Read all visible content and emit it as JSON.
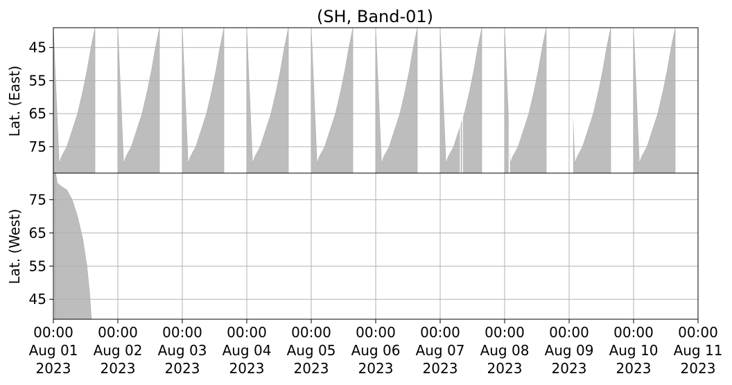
{
  "chart_data": {
    "type": "area",
    "title": "(SH, Band-01)",
    "fill_color": "#bdbdbd",
    "grid": true,
    "x_range": [
      "2023-08-01 00:00",
      "2023-08-11 00:00"
    ],
    "x_ticks": [
      {
        "date": "2023-08-01",
        "time": "00:00",
        "day": "Aug 01",
        "year": "2023"
      },
      {
        "date": "2023-08-02",
        "time": "00:00",
        "day": "Aug 02",
        "year": "2023"
      },
      {
        "date": "2023-08-03",
        "time": "00:00",
        "day": "Aug 03",
        "year": "2023"
      },
      {
        "date": "2023-08-04",
        "time": "00:00",
        "day": "Aug 04",
        "year": "2023"
      },
      {
        "date": "2023-08-05",
        "time": "00:00",
        "day": "Aug 05",
        "year": "2023"
      },
      {
        "date": "2023-08-06",
        "time": "00:00",
        "day": "Aug 06",
        "year": "2023"
      },
      {
        "date": "2023-08-07",
        "time": "00:00",
        "day": "Aug 07",
        "year": "2023"
      },
      {
        "date": "2023-08-08",
        "time": "00:00",
        "day": "Aug 08",
        "year": "2023"
      },
      {
        "date": "2023-08-09",
        "time": "00:00",
        "day": "Aug 09",
        "year": "2023"
      },
      {
        "date": "2023-08-10",
        "time": "00:00",
        "day": "Aug 10",
        "year": "2023"
      },
      {
        "date": "2023-08-11",
        "time": "00:00",
        "day": "Aug 11",
        "year": "2023"
      }
    ],
    "panels": [
      {
        "ylabel": "Lat. (East)",
        "ylim": [
          39,
          83
        ],
        "inverted": true,
        "yticks": [
          45,
          55,
          65,
          75
        ],
        "coverage": [
          {
            "start": "2023-08-01 00:00",
            "cutoff": [
              [
                "2023-08-01 02:10",
                80
              ],
              [
                "2023-08-01 03:00",
                78
              ],
              [
                "2023-08-01 05:00",
                75
              ],
              [
                "2023-08-01 07:00",
                70
              ],
              [
                "2023-08-01 09:00",
                65
              ],
              [
                "2023-08-01 11:00",
                58
              ],
              [
                "2023-08-01 12:30",
                52
              ],
              [
                "2023-08-01 14:00",
                45
              ],
              [
                "2023-08-01 15:30",
                39
              ]
            ]
          },
          {
            "start": "2023-08-02 00:00",
            "cutoff": [
              [
                "2023-08-02 02:10",
                80
              ],
              [
                "2023-08-02 03:00",
                78
              ],
              [
                "2023-08-02 05:00",
                75
              ],
              [
                "2023-08-02 07:00",
                70
              ],
              [
                "2023-08-02 09:00",
                65
              ],
              [
                "2023-08-02 11:00",
                58
              ],
              [
                "2023-08-02 12:30",
                52
              ],
              [
                "2023-08-02 14:00",
                45
              ],
              [
                "2023-08-02 15:30",
                39
              ]
            ]
          },
          {
            "start": "2023-08-03 00:00",
            "cutoff": [
              [
                "2023-08-03 02:10",
                80
              ],
              [
                "2023-08-03 03:00",
                78
              ],
              [
                "2023-08-03 05:00",
                75
              ],
              [
                "2023-08-03 07:00",
                70
              ],
              [
                "2023-08-03 09:00",
                65
              ],
              [
                "2023-08-03 11:00",
                58
              ],
              [
                "2023-08-03 12:30",
                52
              ],
              [
                "2023-08-03 14:00",
                45
              ],
              [
                "2023-08-03 15:30",
                39
              ]
            ]
          },
          {
            "start": "2023-08-04 00:00",
            "cutoff": [
              [
                "2023-08-04 02:10",
                80
              ],
              [
                "2023-08-04 03:00",
                78
              ],
              [
                "2023-08-04 05:00",
                75
              ],
              [
                "2023-08-04 07:00",
                70
              ],
              [
                "2023-08-04 09:00",
                65
              ],
              [
                "2023-08-04 11:00",
                58
              ],
              [
                "2023-08-04 12:30",
                52
              ],
              [
                "2023-08-04 14:00",
                45
              ],
              [
                "2023-08-04 15:30",
                39
              ]
            ]
          },
          {
            "start": "2023-08-05 00:00",
            "cutoff": [
              [
                "2023-08-05 02:10",
                80
              ],
              [
                "2023-08-05 03:00",
                78
              ],
              [
                "2023-08-05 05:00",
                75
              ],
              [
                "2023-08-05 07:00",
                70
              ],
              [
                "2023-08-05 09:00",
                65
              ],
              [
                "2023-08-05 11:00",
                58
              ],
              [
                "2023-08-05 12:30",
                52
              ],
              [
                "2023-08-05 14:00",
                45
              ],
              [
                "2023-08-05 15:30",
                39
              ]
            ]
          },
          {
            "start": "2023-08-06 00:00",
            "cutoff": [
              [
                "2023-08-06 02:10",
                80
              ],
              [
                "2023-08-06 03:00",
                78
              ],
              [
                "2023-08-06 05:00",
                75
              ],
              [
                "2023-08-06 07:00",
                70
              ],
              [
                "2023-08-06 09:00",
                65
              ],
              [
                "2023-08-06 11:00",
                58
              ],
              [
                "2023-08-06 12:30",
                52
              ],
              [
                "2023-08-06 14:00",
                45
              ],
              [
                "2023-08-06 15:30",
                39
              ]
            ]
          },
          {
            "start": "2023-08-07 00:00",
            "cutoff": [
              [
                "2023-08-07 02:10",
                80
              ],
              [
                "2023-08-07 03:00",
                78
              ],
              [
                "2023-08-07 05:00",
                75
              ],
              [
                "2023-08-07 07:00",
                70
              ],
              [
                "2023-08-07 09:00",
                65
              ],
              [
                "2023-08-07 11:00",
                58
              ],
              [
                "2023-08-07 12:30",
                52
              ],
              [
                "2023-08-07 14:00",
                45
              ],
              [
                "2023-08-07 15:30",
                39
              ]
            ]
          },
          {
            "start": "2023-08-08 00:00",
            "cutoff": [
              [
                "2023-08-08 02:10",
                80
              ],
              [
                "2023-08-08 03:00",
                78
              ],
              [
                "2023-08-08 05:00",
                75
              ],
              [
                "2023-08-08 07:00",
                70
              ],
              [
                "2023-08-08 09:00",
                65
              ],
              [
                "2023-08-08 11:00",
                58
              ],
              [
                "2023-08-08 12:30",
                52
              ],
              [
                "2023-08-08 14:00",
                45
              ],
              [
                "2023-08-08 15:30",
                39
              ]
            ]
          },
          {
            "start": "2023-08-09 00:00",
            "cutoff": [
              [
                "2023-08-09 02:10",
                80
              ],
              [
                "2023-08-09 03:00",
                78
              ],
              [
                "2023-08-09 05:00",
                75
              ],
              [
                "2023-08-09 07:00",
                70
              ],
              [
                "2023-08-09 09:00",
                65
              ],
              [
                "2023-08-09 11:00",
                58
              ],
              [
                "2023-08-09 12:30",
                52
              ],
              [
                "2023-08-09 14:00",
                45
              ],
              [
                "2023-08-09 15:30",
                39
              ]
            ]
          },
          {
            "start": "2023-08-10 00:00",
            "cutoff": [
              [
                "2023-08-10 02:10",
                80
              ],
              [
                "2023-08-10 03:00",
                78
              ],
              [
                "2023-08-10 05:00",
                75
              ],
              [
                "2023-08-10 07:00",
                70
              ],
              [
                "2023-08-10 09:00",
                65
              ],
              [
                "2023-08-10 11:00",
                58
              ],
              [
                "2023-08-10 12:30",
                52
              ],
              [
                "2023-08-10 14:00",
                45
              ],
              [
                "2023-08-10 15:30",
                39
              ]
            ]
          }
        ],
        "gaps": [
          {
            "start": "2023-08-01 19:50",
            "end": "2023-08-01 23:20"
          },
          {
            "start": "2023-08-02 19:50",
            "end": "2023-08-02 23:10"
          },
          {
            "start": "2023-08-03 19:50",
            "end": "2023-08-03 23:10"
          },
          {
            "start": "2023-08-04 19:50",
            "end": "2023-08-04 23:10"
          },
          {
            "start": "2023-08-05 19:50",
            "end": "2023-08-05 23:10"
          },
          {
            "start": "2023-08-06 19:50",
            "end": "2023-08-06 23:10"
          },
          {
            "start": "2023-08-07 19:50",
            "end": "2023-08-07 23:10"
          },
          {
            "start": "2023-08-08 19:50",
            "end": "2023-08-08 23:10"
          },
          {
            "start": "2023-08-09 19:50",
            "end": "2023-08-09 23:10"
          },
          {
            "start": "2023-08-07 07:20",
            "end": "2023-08-07 07:40"
          },
          {
            "start": "2023-08-07 08:10",
            "end": "2023-08-07 08:30"
          },
          {
            "start": "2023-08-08 01:30",
            "end": "2023-08-08 02:00"
          },
          {
            "start": "2023-08-09 00:00",
            "end": "2023-08-09 01:30"
          }
        ]
      },
      {
        "ylabel": "Lat. (West)",
        "ylim": [
          39,
          83
        ],
        "inverted": false,
        "yticks": [
          45,
          55,
          65,
          75
        ],
        "coverage": [
          {
            "start": "2023-08-01 00:20",
            "end": "2023-08-01 00:50",
            "top": 83,
            "bottom": 39
          },
          {
            "start": "2023-08-01 00:50",
            "cutoff": [
              [
                "2023-08-01 01:30",
                80
              ],
              [
                "2023-08-01 03:00",
                79
              ],
              [
                "2023-08-01 05:00",
                78
              ],
              [
                "2023-08-01 07:00",
                75
              ],
              [
                "2023-08-01 09:00",
                70
              ],
              [
                "2023-08-01 11:00",
                63
              ],
              [
                "2023-08-01 12:30",
                55
              ],
              [
                "2023-08-01 13:30",
                47
              ],
              [
                "2023-08-01 14:10",
                39
              ]
            ]
          }
        ],
        "gaps": []
      }
    ]
  }
}
